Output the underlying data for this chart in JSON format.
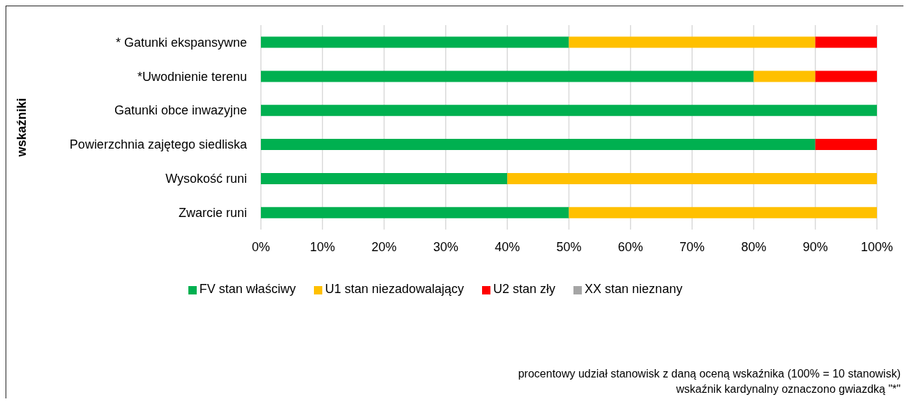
{
  "chart_data": {
    "type": "bar",
    "orientation": "horizontal",
    "stacked": true,
    "categories": [
      "* Gatunki ekspansywne",
      "*Uwodnienie terenu",
      "Gatunki obce inwazyjne",
      "Powierzchnia zajętego siedliska",
      "Wysokość runi",
      "Zwarcie runi"
    ],
    "series": [
      {
        "name": "FV stan właściwy",
        "color": "#00b050",
        "values": [
          50,
          80,
          100,
          90,
          40,
          50
        ]
      },
      {
        "name": "U1 stan niezadowalający",
        "color": "#ffc000",
        "values": [
          40,
          10,
          0,
          0,
          60,
          50
        ]
      },
      {
        "name": "U2 stan zły",
        "color": "#ff0000",
        "values": [
          10,
          10,
          0,
          10,
          0,
          0
        ]
      },
      {
        "name": "XX stan nieznany",
        "color": "#a5a5a5",
        "values": [
          0,
          0,
          0,
          0,
          0,
          0
        ]
      }
    ],
    "xlim": [
      0,
      100
    ],
    "xticks": [
      {
        "value": 0,
        "label": "0%"
      },
      {
        "value": 10,
        "label": "10%"
      },
      {
        "value": 20,
        "label": "20%"
      },
      {
        "value": 30,
        "label": "30%"
      },
      {
        "value": 40,
        "label": "40%"
      },
      {
        "value": 50,
        "label": "50%"
      },
      {
        "value": 60,
        "label": "60%"
      },
      {
        "value": 70,
        "label": "70%"
      },
      {
        "value": 80,
        "label": "80%"
      },
      {
        "value": 90,
        "label": "90%"
      },
      {
        "value": 100,
        "label": "100%"
      }
    ],
    "ylabel": "wskaźniki",
    "annotations": [
      "procentowy udział stanowisk z daną oceną wskaźnika (100% = 10 stanowisk)",
      "wskaźnik kardynalny oznaczono gwiazdką \"*\""
    ],
    "grid": "x",
    "legend": "bottom"
  }
}
